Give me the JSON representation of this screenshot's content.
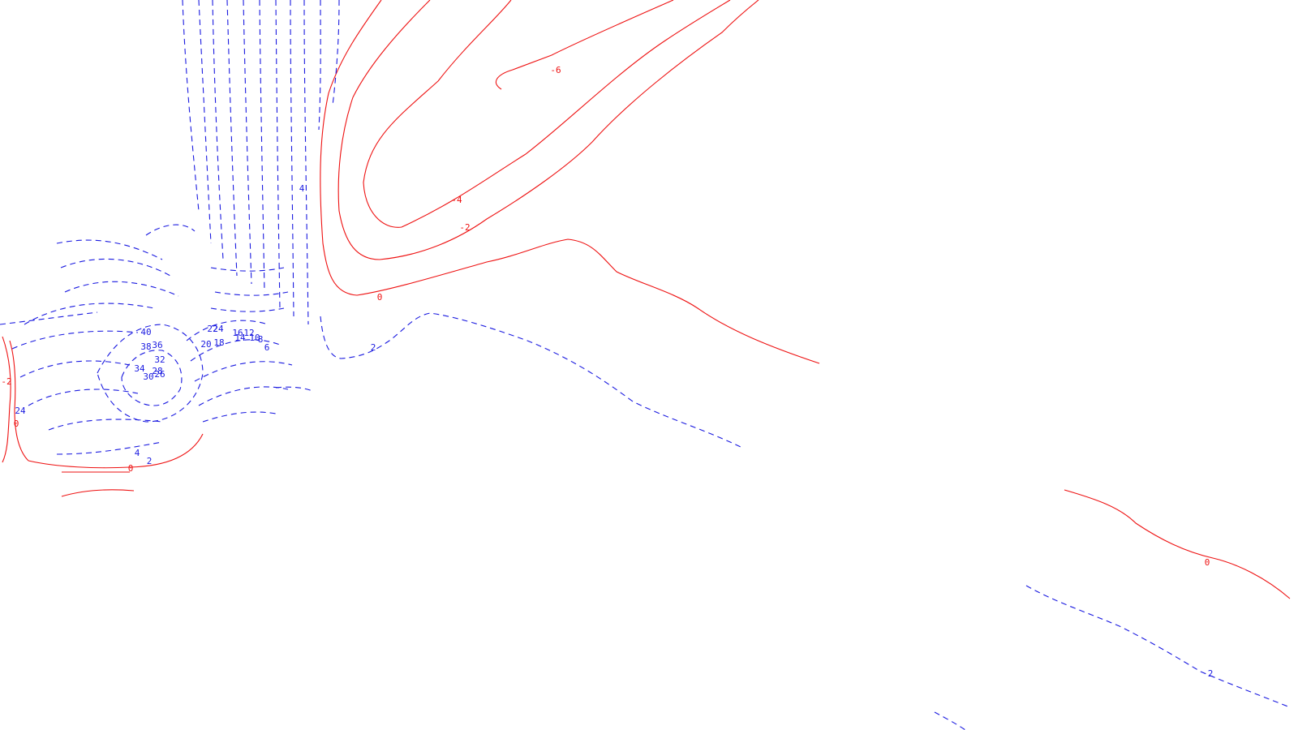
{
  "chart_data": {
    "type": "contour",
    "title": "",
    "xlabel": "",
    "ylabel": "",
    "axes_visible": false,
    "grid": false,
    "legend": "none",
    "style": {
      "negative_color": "#ee1111",
      "negative_linestyle": "solid",
      "positive_color": "#1a1ae0",
      "positive_linestyle": "dashed"
    },
    "contour_levels": [
      "-6",
      "-4",
      "-2",
      "0",
      "2",
      "4",
      "6",
      "8",
      "10",
      "12",
      "14",
      "16",
      "18",
      "20",
      "22",
      "24",
      "26",
      "28",
      "30",
      "32",
      "34",
      "36",
      "38",
      "40"
    ],
    "level_labels": [
      {
        "text": "-6",
        "sign": "neg"
      },
      {
        "text": "-4",
        "sign": "neg"
      },
      {
        "text": "-2",
        "sign": "neg"
      },
      {
        "text": "0",
        "sign": "neg"
      },
      {
        "text": "0",
        "sign": "neg"
      },
      {
        "text": "0",
        "sign": "neg"
      },
      {
        "text": "-2",
        "sign": "neg"
      },
      {
        "text": "0",
        "sign": "neg"
      },
      {
        "text": "2",
        "sign": "pos"
      },
      {
        "text": "2",
        "sign": "pos"
      },
      {
        "text": "2",
        "sign": "pos"
      },
      {
        "text": "4",
        "sign": "pos"
      },
      {
        "text": "4",
        "sign": "pos"
      },
      {
        "text": "40",
        "sign": "pos"
      },
      {
        "text": "38",
        "sign": "pos"
      },
      {
        "text": "36",
        "sign": "pos"
      },
      {
        "text": "32",
        "sign": "pos"
      },
      {
        "text": "34",
        "sign": "pos"
      },
      {
        "text": "28",
        "sign": "pos"
      },
      {
        "text": "30",
        "sign": "pos"
      },
      {
        "text": "26",
        "sign": "pos"
      },
      {
        "text": "24",
        "sign": "pos"
      },
      {
        "text": "22",
        "sign": "pos"
      },
      {
        "text": "20",
        "sign": "pos"
      },
      {
        "text": "18",
        "sign": "pos"
      },
      {
        "text": "16",
        "sign": "pos"
      },
      {
        "text": "12",
        "sign": "pos"
      },
      {
        "text": "14",
        "sign": "pos"
      },
      {
        "text": "10",
        "sign": "pos"
      },
      {
        "text": "8",
        "sign": "pos"
      },
      {
        "text": "6",
        "sign": "pos"
      },
      {
        "text": "24",
        "sign": "pos"
      }
    ]
  }
}
